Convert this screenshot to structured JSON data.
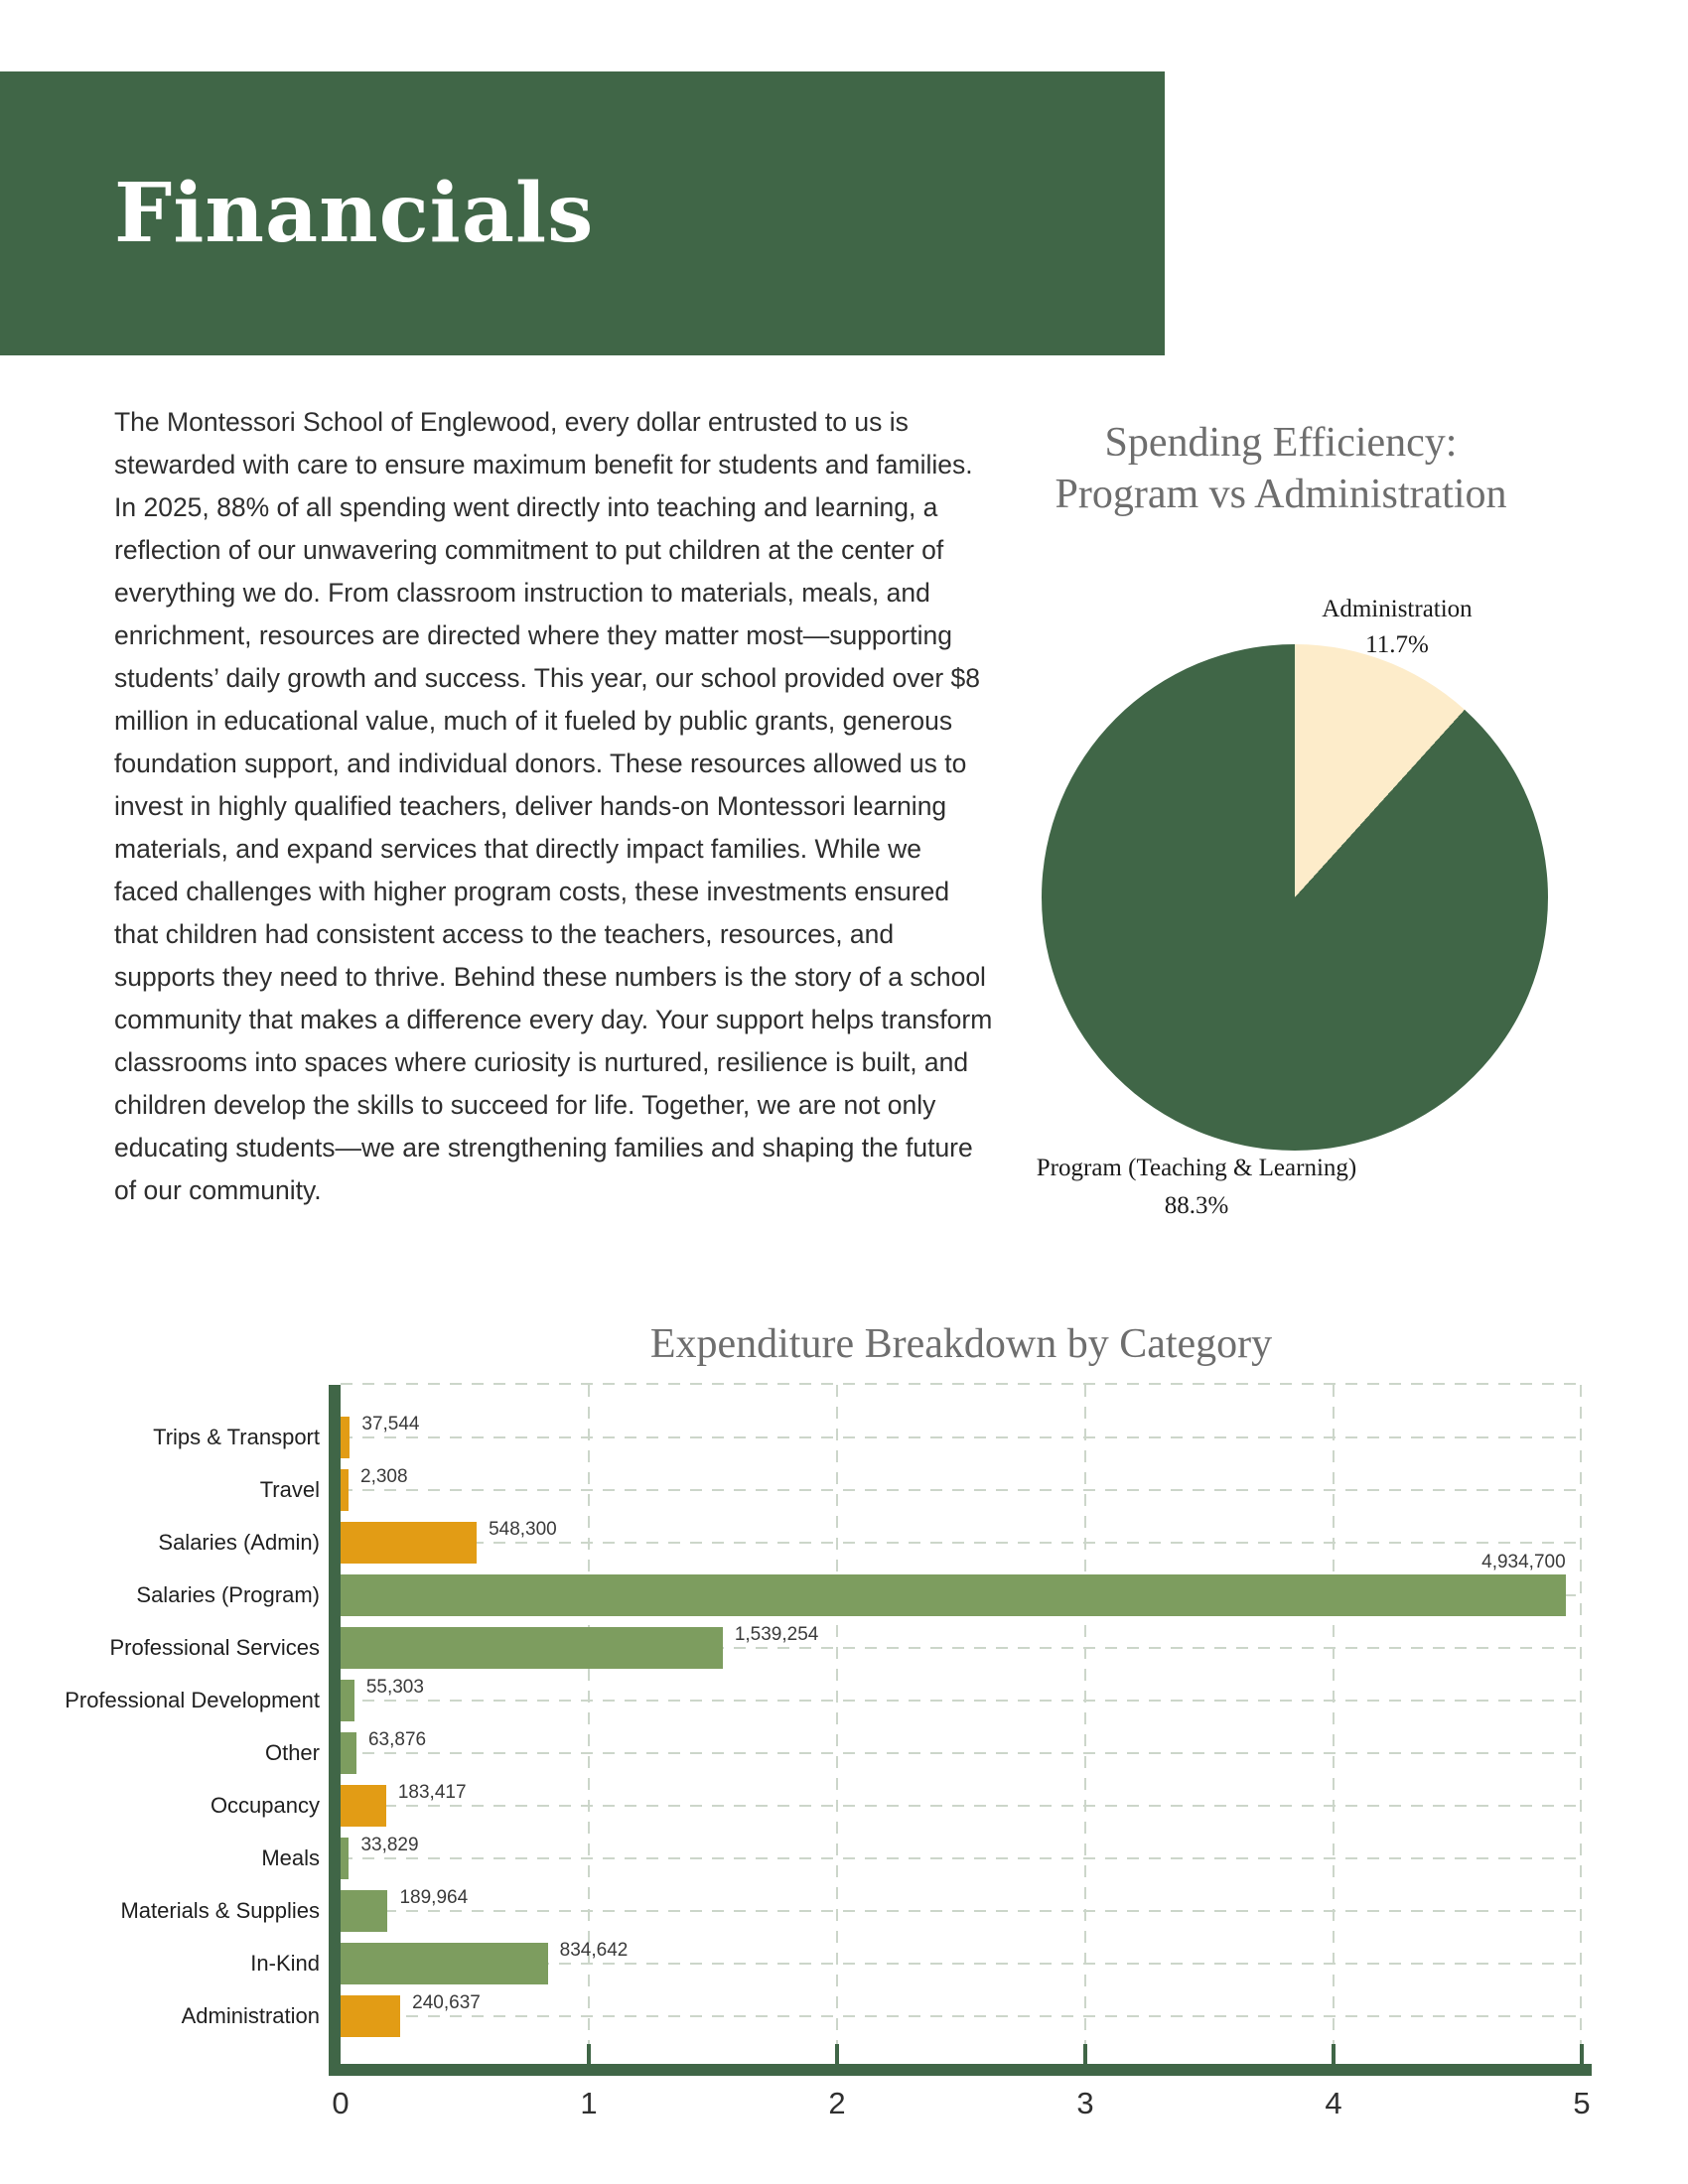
{
  "header": {
    "title": "Financials"
  },
  "intro_paragraph": "The Montessori School of Englewood, every dollar entrusted to us is stewarded with care to ensure maximum benefit for students and families. In 2025, 88% of all spending went directly into teaching and learning, a reflection of our unwavering commitment to put children at the center of everything we do. From classroom instruction to materials, meals, and enrichment, resources are directed where they matter most—supporting students’ daily growth and success. This year, our school provided over $8 million in educational value, much of it fueled by public grants, generous foundation support, and individual donors. These resources allowed us to invest in highly qualified teachers, deliver hands-on Montessori learning materials, and expand services that directly impact families. While we faced challenges with higher program costs, these investments ensured that children had consistent access to the teachers, resources, and supports they need to thrive. Behind these numbers is the story of a school community that makes a difference every day. Your support helps transform classrooms into spaces where curiosity is nurtured, resilience is built, and children develop the skills to succeed for life. Together, we are not only educating students—we are strengthening families and shaping the future of our community.",
  "colors": {
    "banner_green": "#406647",
    "bar_green": "#7D9D5F",
    "orange": "#E29C15",
    "cream": "#FDECCA",
    "grid": "#CCD6CA",
    "title_gray": "#6E6E6E"
  },
  "chart_data": [
    {
      "type": "pie",
      "title_line1": "Spending Efficiency:",
      "title_line2": "Program vs Administration",
      "start_angle": "12 o'clock, clockwise",
      "legend_position": "none",
      "slices": [
        {
          "label": "Administration",
          "pct": 11.7,
          "pct_label": "11.7%",
          "color": "#FDECCA"
        },
        {
          "label": "Program (Teaching & Learning)",
          "pct": 88.3,
          "pct_label": "88.3%",
          "color": "#406647"
        }
      ]
    },
    {
      "type": "bar",
      "orientation": "horizontal",
      "title": "Expenditure Breakdown by Category",
      "grid": "dashed",
      "xlim": [
        0,
        5
      ],
      "x_ticks": [
        "0",
        "1",
        "2",
        "3",
        "4",
        "5"
      ],
      "categories": [
        "Trips & Transport",
        "Travel",
        "Salaries (Admin)",
        "Salaries (Program)",
        "Professional Services",
        "Professional Development",
        "Other",
        "Occupancy",
        "Meals",
        "Materials & Supplies",
        "In-Kind",
        "Administration"
      ],
      "values": [
        37544,
        2308,
        548300,
        4934700,
        1539254,
        55303,
        63876,
        183417,
        33829,
        189964,
        834642,
        240637
      ],
      "value_labels": [
        "37,544",
        "2,308",
        "548,300",
        "4,934,700",
        "1,539,254",
        "55,303",
        "63,876",
        "183,417",
        "33,829",
        "189,964",
        "834,642",
        "240,637"
      ],
      "bar_colors": [
        "#E29C15",
        "#E29C15",
        "#E29C15",
        "#7D9D5F",
        "#7D9D5F",
        "#7D9D5F",
        "#7D9D5F",
        "#E29C15",
        "#7D9D5F",
        "#7D9D5F",
        "#7D9D5F",
        "#E29C15"
      ]
    }
  ]
}
